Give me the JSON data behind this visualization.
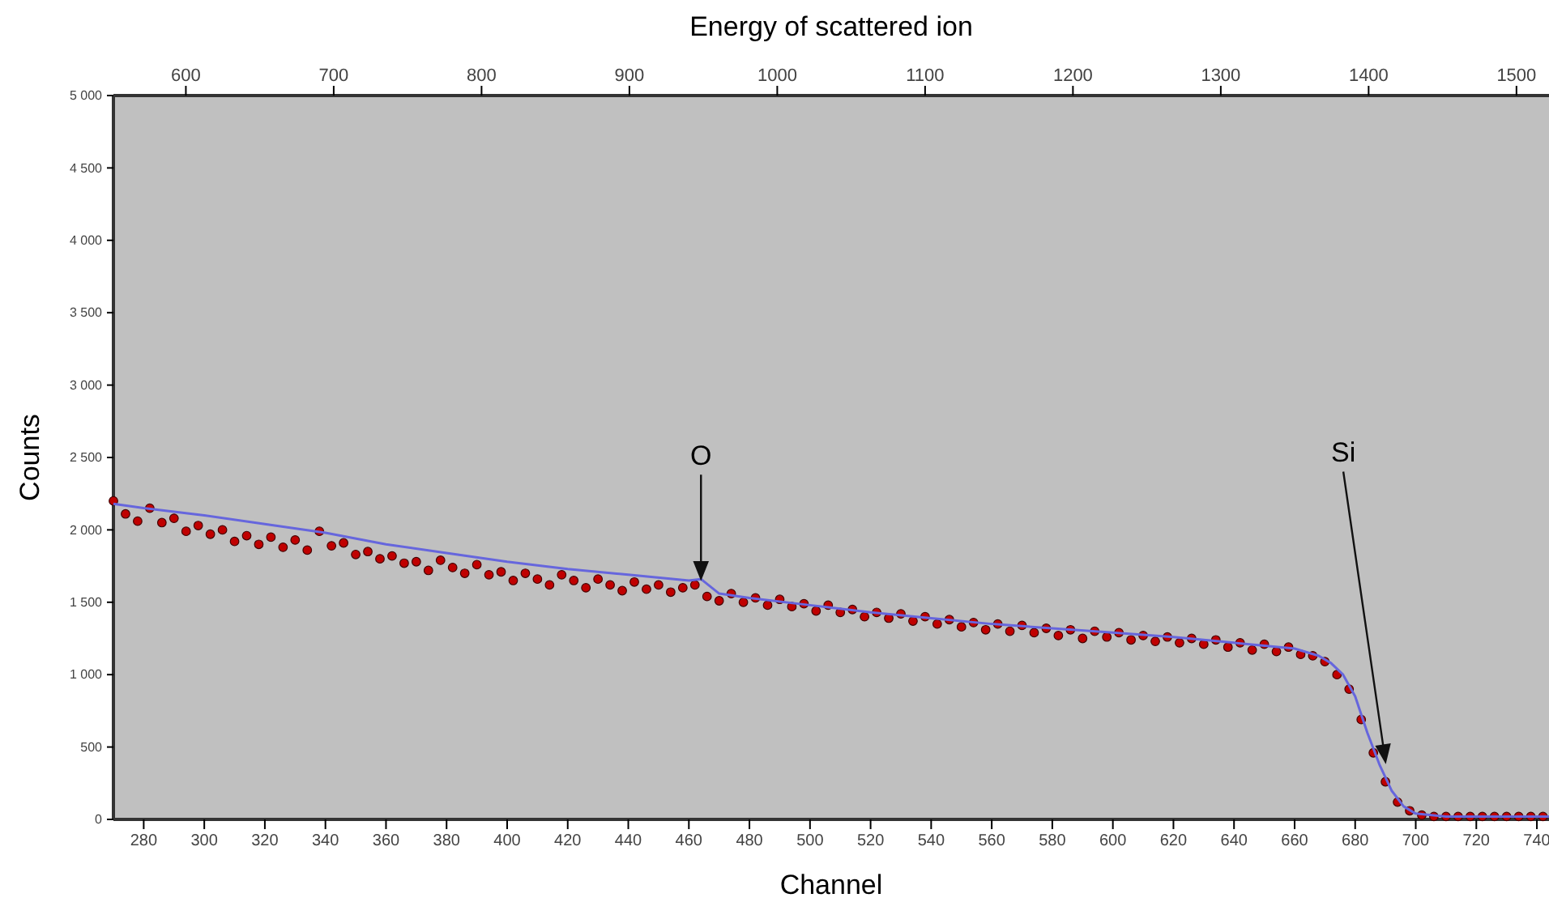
{
  "chart_data": {
    "type": "scatter",
    "xlabel": "Channel",
    "ylabel": "Counts",
    "x2label": "Energy of scattered ion",
    "xlim": [
      270,
      744
    ],
    "xticks": [
      280,
      300,
      320,
      340,
      360,
      380,
      400,
      420,
      440,
      460,
      480,
      500,
      520,
      540,
      560,
      580,
      600,
      620,
      640,
      660,
      680,
      700,
      720,
      740
    ],
    "x2lim": [
      551,
      1522
    ],
    "x2ticks": [
      600,
      700,
      800,
      900,
      1000,
      1100,
      1200,
      1300,
      1400,
      1500
    ],
    "ylim": [
      0,
      5000
    ],
    "yticks": [
      0,
      500,
      {
        "value": 1000,
        "label": "1 000"
      },
      {
        "value": 1500,
        "label": "1 500"
      },
      {
        "value": 2000,
        "label": "2 000"
      },
      {
        "value": 2500,
        "label": "2 500"
      },
      {
        "value": 3000,
        "label": "3 000"
      },
      {
        "value": 3500,
        "label": "3 500"
      },
      {
        "value": 4000,
        "label": "4 000"
      },
      {
        "value": 4500,
        "label": "4 500"
      },
      {
        "value": 5000,
        "label": "5 000"
      }
    ],
    "grid": false,
    "series": [
      {
        "marker": "circle",
        "color": "#c00000",
        "x": [
          270,
          274,
          278,
          282,
          286,
          290,
          294,
          298,
          302,
          306,
          310,
          314,
          318,
          322,
          326,
          330,
          334,
          338,
          342,
          346,
          350,
          354,
          358,
          362,
          366,
          370,
          374,
          378,
          382,
          386,
          390,
          394,
          398,
          402,
          406,
          410,
          414,
          418,
          422,
          426,
          430,
          434,
          438,
          442,
          446,
          450,
          454,
          458,
          462,
          466,
          470,
          474,
          478,
          482,
          486,
          490,
          494,
          498,
          502,
          506,
          510,
          514,
          518,
          522,
          526,
          530,
          534,
          538,
          542,
          546,
          550,
          554,
          558,
          562,
          566,
          570,
          574,
          578,
          582,
          586,
          590,
          594,
          598,
          602,
          606,
          610,
          614,
          618,
          622,
          626,
          630,
          634,
          638,
          642,
          646,
          650,
          654,
          658,
          662,
          666,
          670,
          674,
          678,
          682,
          686,
          690,
          694,
          698,
          702,
          706,
          710,
          714,
          718,
          722,
          726,
          730,
          734,
          738,
          742
        ],
        "values": [
          2200,
          2110,
          2060,
          2150,
          2050,
          2080,
          1990,
          2030,
          1970,
          2000,
          1920,
          1960,
          1900,
          1950,
          1880,
          1930,
          1860,
          1990,
          1890,
          1910,
          1830,
          1850,
          1800,
          1820,
          1770,
          1780,
          1720,
          1790,
          1740,
          1700,
          1760,
          1690,
          1710,
          1650,
          1700,
          1660,
          1620,
          1690,
          1650,
          1600,
          1660,
          1620,
          1580,
          1640,
          1590,
          1620,
          1570,
          1600,
          1620,
          1540,
          1510,
          1560,
          1500,
          1530,
          1480,
          1520,
          1470,
          1490,
          1440,
          1480,
          1430,
          1450,
          1400,
          1430,
          1390,
          1420,
          1370,
          1400,
          1350,
          1380,
          1330,
          1360,
          1310,
          1350,
          1300,
          1340,
          1290,
          1320,
          1270,
          1310,
          1250,
          1300,
          1260,
          1290,
          1240,
          1270,
          1230,
          1260,
          1220,
          1250,
          1210,
          1240,
          1190,
          1220,
          1170,
          1210,
          1160,
          1190,
          1140,
          1130,
          1090,
          1000,
          900,
          690,
          460,
          260,
          120,
          60,
          30,
          20,
          20,
          20,
          20,
          20,
          20,
          20,
          20,
          20,
          20
        ]
      },
      {
        "type": "line",
        "color": "#6666dd",
        "x": [
          270,
          280,
          300,
          320,
          340,
          360,
          380,
          400,
          420,
          440,
          460,
          464,
          470,
          480,
          500,
          520,
          540,
          560,
          580,
          600,
          620,
          640,
          660,
          668,
          672,
          676,
          680,
          684,
          688,
          692,
          696,
          700,
          710,
          720,
          744
        ],
        "values": [
          2180,
          2150,
          2100,
          2040,
          1980,
          1900,
          1840,
          1780,
          1730,
          1690,
          1650,
          1660,
          1560,
          1530,
          1480,
          1430,
          1390,
          1350,
          1320,
          1290,
          1260,
          1220,
          1180,
          1130,
          1080,
          1000,
          850,
          600,
          380,
          200,
          90,
          40,
          20,
          20,
          20
        ]
      }
    ],
    "annotations": [
      {
        "text": "O",
        "x": 464,
        "y": 1665
      },
      {
        "text": "Si",
        "x": 690,
        "y": 400
      }
    ]
  }
}
